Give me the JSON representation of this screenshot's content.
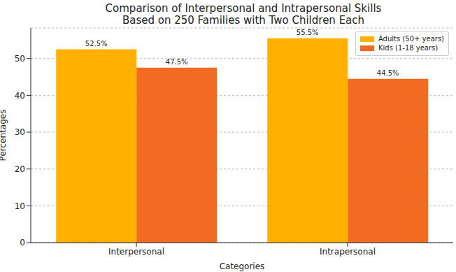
{
  "chart_data": {
    "type": "bar",
    "title": "Comparison of Interpersonal and Intrapersonal Skills\nBased on 250 Families with Two Children Each",
    "x_label": "Categories",
    "y_label": "Percentages",
    "categories": [
      "Interpersonal",
      "Intrapersonal"
    ],
    "series": [
      {
        "name": "Adults (50+ years)",
        "color": "#ffb000",
        "values": [
          52.5,
          55.5
        ],
        "value_labels": [
          "52.5%",
          "55.5%"
        ]
      },
      {
        "name": "Kids (1-18 years)",
        "color": "#f26b22",
        "values": [
          47.5,
          44.5
        ],
        "value_labels": [
          "47.5%",
          "44.5%"
        ]
      }
    ],
    "ylim": [
      0,
      58.3
    ],
    "yticks": [
      0,
      10,
      20,
      30,
      40,
      50
    ],
    "grid": true,
    "legend": "upper right",
    "data_labels": true
  }
}
